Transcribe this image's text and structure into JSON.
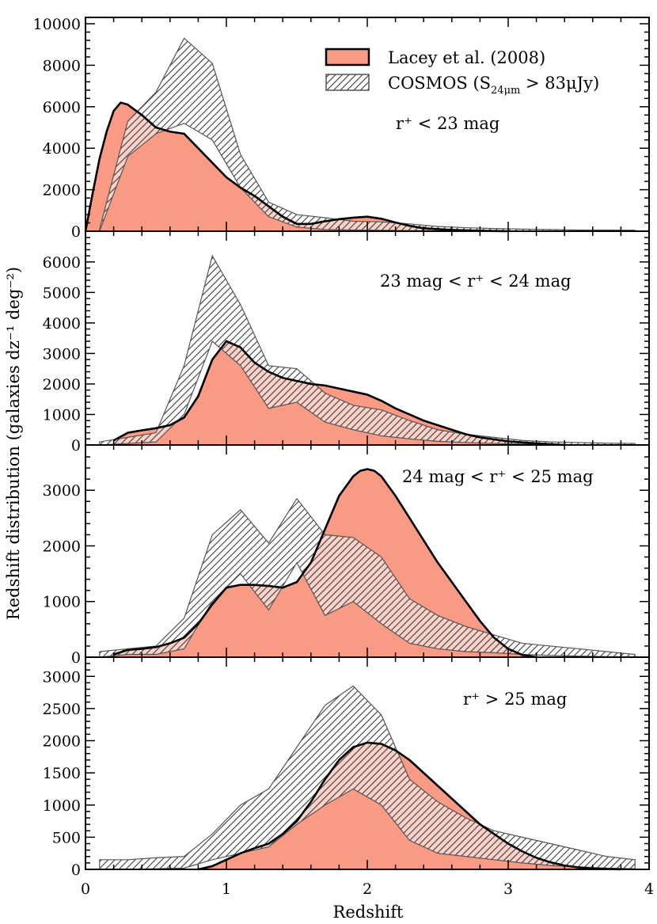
{
  "figure": {
    "xlabel": "Redshift",
    "ylabel": "Redshift distribution (galaxies dz⁻¹ deg⁻²)"
  },
  "legend": {
    "placement": "top-right of top panel",
    "model_label": "Lacey et al. (2008)",
    "obs_label_main": "COSMOS (S",
    "obs_label_sub": "24μm",
    "obs_label_tail": " > 83μJy)"
  },
  "colors": {
    "model_fill": "#f99a85",
    "model_line": "#000000",
    "obs_hatch": "#3a3a3a",
    "obs_fill": "#ffffff"
  },
  "chart_data": [
    {
      "type": "area",
      "panel_label": "r⁺ < 23 mag",
      "xlim": [
        0,
        4
      ],
      "ylim": [
        0,
        10000
      ],
      "yticks": [
        0,
        2000,
        4000,
        6000,
        8000,
        10000
      ],
      "xticks": [
        0,
        1,
        2,
        3,
        4
      ],
      "model": {
        "x": [
          0,
          0.05,
          0.1,
          0.15,
          0.2,
          0.25,
          0.3,
          0.4,
          0.5,
          0.6,
          0.7,
          0.8,
          0.9,
          1.0,
          1.1,
          1.2,
          1.3,
          1.4,
          1.5,
          1.6,
          1.7,
          1.8,
          1.9,
          2.0,
          2.1,
          2.2,
          2.3,
          2.4,
          2.6,
          2.8,
          3.0
        ],
        "y": [
          0,
          1800,
          3500,
          4800,
          5800,
          6200,
          6100,
          5600,
          5000,
          4800,
          4700,
          4000,
          3300,
          2600,
          2100,
          1700,
          1200,
          700,
          350,
          350,
          480,
          580,
          650,
          700,
          600,
          420,
          260,
          140,
          60,
          20,
          0
        ]
      },
      "observed": {
        "x": [
          0.1,
          0.3,
          0.5,
          0.7,
          0.9,
          1.1,
          1.3,
          1.5,
          1.7,
          1.9,
          2.1,
          2.3,
          2.5,
          2.7,
          2.9,
          3.1,
          3.3,
          3.5,
          3.7,
          3.9
        ],
        "upper": [
          100,
          5300,
          6700,
          9300,
          8100,
          3700,
          1400,
          800,
          650,
          480,
          450,
          350,
          230,
          170,
          130,
          100,
          80,
          60,
          60,
          50
        ],
        "lower": [
          0,
          3600,
          4700,
          5200,
          4400,
          2100,
          700,
          200,
          80,
          60,
          50,
          30,
          20,
          10,
          10,
          5,
          5,
          5,
          5,
          5
        ]
      }
    },
    {
      "type": "area",
      "panel_label": "23 mag < r⁺ < 24 mag",
      "xlim": [
        0,
        4
      ],
      "ylim": [
        0,
        6800
      ],
      "yticks": [
        0,
        1000,
        2000,
        3000,
        4000,
        5000,
        6000
      ],
      "xticks": [
        0,
        1,
        2,
        3,
        4
      ],
      "model": {
        "x": [
          0.2,
          0.3,
          0.4,
          0.5,
          0.6,
          0.7,
          0.8,
          0.9,
          1.0,
          1.1,
          1.2,
          1.3,
          1.4,
          1.5,
          1.6,
          1.7,
          1.8,
          1.9,
          2.0,
          2.1,
          2.2,
          2.3,
          2.4,
          2.5,
          2.6,
          2.7,
          2.8,
          3.0,
          3.2,
          3.4
        ],
        "y": [
          150,
          400,
          480,
          550,
          650,
          900,
          1600,
          2800,
          3400,
          3200,
          2700,
          2400,
          2200,
          2100,
          2000,
          1950,
          1850,
          1750,
          1650,
          1450,
          1200,
          1000,
          800,
          650,
          500,
          350,
          250,
          120,
          50,
          0
        ]
      },
      "observed": {
        "x": [
          0.1,
          0.3,
          0.5,
          0.7,
          0.9,
          1.1,
          1.3,
          1.5,
          1.7,
          1.9,
          2.1,
          2.3,
          2.5,
          2.7,
          2.9,
          3.1,
          3.3,
          3.5,
          3.7,
          3.9
        ],
        "upper": [
          100,
          250,
          400,
          2600,
          6200,
          4600,
          2600,
          2500,
          1700,
          1300,
          1150,
          800,
          500,
          350,
          250,
          150,
          100,
          80,
          60,
          50
        ],
        "lower": [
          0,
          50,
          100,
          1000,
          3400,
          2600,
          1200,
          1400,
          750,
          500,
          300,
          200,
          120,
          80,
          50,
          30,
          20,
          10,
          10,
          5
        ]
      }
    },
    {
      "type": "area",
      "panel_label": "24 mag < r⁺ < 25 mag",
      "xlim": [
        0,
        4
      ],
      "ylim": [
        0,
        3700
      ],
      "yticks": [
        0,
        1000,
        2000,
        3000
      ],
      "xticks": [
        0,
        1,
        2,
        3,
        4
      ],
      "model": {
        "x": [
          0.2,
          0.3,
          0.4,
          0.5,
          0.6,
          0.7,
          0.8,
          0.9,
          1.0,
          1.1,
          1.2,
          1.3,
          1.4,
          1.5,
          1.6,
          1.7,
          1.8,
          1.9,
          1.95,
          2.0,
          2.05,
          2.1,
          2.2,
          2.3,
          2.4,
          2.5,
          2.6,
          2.7,
          2.8,
          2.9,
          3.0,
          3.1,
          3.2
        ],
        "y": [
          50,
          130,
          150,
          180,
          250,
          350,
          600,
          950,
          1250,
          1300,
          1300,
          1280,
          1250,
          1350,
          1700,
          2300,
          2900,
          3250,
          3350,
          3380,
          3350,
          3250,
          2900,
          2500,
          2100,
          1700,
          1350,
          1000,
          650,
          350,
          150,
          40,
          0
        ]
      },
      "observed": {
        "x": [
          0.1,
          0.3,
          0.5,
          0.7,
          0.9,
          1.1,
          1.3,
          1.5,
          1.7,
          1.9,
          2.1,
          2.3,
          2.5,
          2.7,
          2.9,
          3.1,
          3.3,
          3.5,
          3.7,
          3.9
        ],
        "upper": [
          100,
          150,
          200,
          700,
          2200,
          2650,
          2050,
          2850,
          2200,
          2150,
          1800,
          1050,
          750,
          550,
          400,
          250,
          200,
          150,
          100,
          50
        ],
        "lower": [
          0,
          50,
          50,
          150,
          1000,
          1500,
          850,
          1700,
          750,
          1000,
          600,
          250,
          150,
          100,
          80,
          50,
          30,
          20,
          10,
          5
        ]
      }
    },
    {
      "type": "area",
      "panel_label": "r⁺ > 25 mag",
      "xlim": [
        0,
        4
      ],
      "ylim": [
        0,
        3200
      ],
      "yticks": [
        0,
        500,
        1000,
        1500,
        2000,
        2500,
        3000
      ],
      "xticks": [
        0,
        1,
        2,
        3,
        4
      ],
      "model": {
        "x": [
          0.8,
          0.9,
          1.0,
          1.1,
          1.2,
          1.3,
          1.4,
          1.5,
          1.6,
          1.7,
          1.8,
          1.9,
          2.0,
          2.1,
          2.2,
          2.3,
          2.4,
          2.5,
          2.6,
          2.7,
          2.8,
          2.9,
          3.0,
          3.1,
          3.2,
          3.3,
          3.4,
          3.5,
          3.6,
          3.8
        ],
        "y": [
          0,
          50,
          150,
          250,
          330,
          400,
          550,
          750,
          1050,
          1400,
          1700,
          1900,
          1970,
          1950,
          1850,
          1700,
          1500,
          1300,
          1100,
          900,
          700,
          550,
          400,
          280,
          180,
          110,
          60,
          30,
          10,
          0
        ]
      },
      "observed": {
        "x": [
          0.1,
          0.3,
          0.5,
          0.7,
          0.9,
          1.1,
          1.3,
          1.5,
          1.7,
          1.9,
          2.1,
          2.3,
          2.5,
          2.7,
          2.9,
          3.1,
          3.3,
          3.5,
          3.7,
          3.9
        ],
        "upper": [
          150,
          150,
          180,
          200,
          550,
          1000,
          1250,
          1900,
          2550,
          2850,
          2400,
          1400,
          1050,
          800,
          600,
          500,
          400,
          300,
          200,
          150
        ],
        "lower": [
          0,
          0,
          10,
          20,
          150,
          250,
          350,
          700,
          1000,
          1250,
          1000,
          450,
          250,
          200,
          150,
          100,
          60,
          40,
          20,
          10
        ]
      }
    }
  ]
}
